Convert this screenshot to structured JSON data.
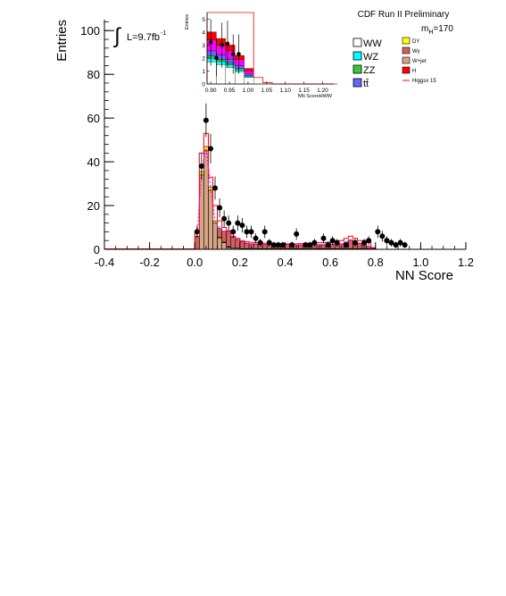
{
  "chart_data": [
    {
      "type": "bar",
      "title": "CDF Run II Preliminary",
      "xlabel": "NN Score",
      "ylabel": "Entries",
      "xlim": [
        -0.4,
        1.2
      ],
      "ylim": [
        0,
        105
      ],
      "x_ticks": [
        "-0.4",
        "-0.2",
        "0.0",
        "0.2",
        "0.4",
        "0.6",
        "0.8",
        "1.0",
        "1.2"
      ],
      "y_ticks": [
        "0",
        "20",
        "40",
        "60",
        "80",
        "100"
      ],
      "bin_width": 0.02,
      "bin_start": 0.0,
      "annotations": {
        "luminosity_prefix": "L=9.7fb",
        "luminosity_exp": "-1",
        "mass_prefix": "m",
        "mass_sub": "H",
        "mass_value": "=170",
        "integral_symbol": "∫"
      },
      "series": [
        {
          "name": "W+jet",
          "color": "#d6a584",
          "values": [
            0,
            34,
            45,
            27,
            12,
            5,
            3,
            1,
            0.5,
            0.5,
            0.3,
            0.3,
            0.3,
            0.3,
            0.3,
            0.3,
            0.3,
            0.3,
            0.3,
            0.3,
            0.3,
            0.3,
            0.3,
            0.3,
            0.3,
            0.3,
            0.3,
            0.3,
            0.3,
            0.3,
            0.3,
            0.3,
            0.3,
            0.3,
            0.3,
            0.3,
            0.3,
            0.3,
            0.3,
            0.3
          ]
        },
        {
          "name": "DY",
          "color": "#ffff00",
          "values": [
            0,
            1.5,
            2,
            1.5,
            1,
            0.5,
            0.3,
            0.2,
            0,
            0,
            0,
            0,
            0,
            0,
            0,
            0,
            0,
            0,
            0,
            0,
            0,
            0,
            0,
            0,
            0,
            0,
            0,
            0,
            0,
            0,
            0,
            0,
            0,
            0,
            0,
            0,
            0,
            0,
            0,
            0
          ]
        },
        {
          "name": "Wγ",
          "color": "#d26060",
          "values": [
            6,
            0,
            0,
            0,
            0,
            4,
            5,
            7,
            5,
            4,
            3.2,
            2.5,
            2.2,
            2.1,
            2,
            2,
            1.9,
            1.9,
            1.8,
            1.8,
            1.8,
            1.8,
            1.7,
            1.7,
            1.7,
            1.8,
            1.8,
            1.8,
            1.8,
            1.8,
            2,
            2,
            2.2,
            3,
            4,
            3,
            2.5,
            2,
            1,
            0.5
          ]
        },
        {
          "name": "Higgsx 15",
          "color": "#ff0000",
          "values": [
            8,
            44,
            53,
            33,
            20,
            13,
            10,
            8.5,
            6,
            5,
            4,
            3.5,
            3.2,
            3,
            3,
            2.8,
            2.7,
            2.7,
            2.6,
            2.6,
            2.5,
            2.5,
            2.5,
            2.6,
            2.7,
            2.8,
            3,
            3,
            3,
            3.2,
            3.5,
            3.8,
            4,
            5,
            6,
            5,
            4,
            4,
            3,
            0
          ]
        }
      ],
      "data_points": {
        "name": "Data",
        "x": [
          0.0,
          0.02,
          0.04,
          0.06,
          0.08,
          0.1,
          0.12,
          0.14,
          0.16,
          0.18,
          0.2,
          0.22,
          0.24,
          0.26,
          0.28,
          0.3,
          0.32,
          0.34,
          0.36,
          0.38,
          0.42,
          0.44,
          0.48,
          0.5,
          0.52,
          0.56,
          0.58,
          0.6,
          0.62,
          0.66,
          0.7,
          0.74,
          0.76,
          0.8,
          0.82,
          0.84,
          0.86,
          0.88,
          0.9,
          0.92
        ],
        "y": [
          8,
          38,
          59,
          46,
          28,
          19,
          14,
          12,
          8,
          12,
          11,
          8,
          8,
          5,
          3,
          8,
          3,
          2,
          2,
          2,
          2,
          7,
          2,
          2,
          3,
          5,
          2,
          4,
          3,
          2,
          3,
          3,
          4,
          8,
          6,
          4,
          3,
          2,
          3,
          2
        ]
      },
      "legend_entries": [
        "WW",
        "WZ",
        "ZZ",
        "tt̄",
        "DY",
        "Wγ",
        "W+jet",
        "H",
        "Higgsx 15"
      ],
      "legend_colors": [
        "#ffffff",
        "#00ffff",
        "#33cc33",
        "#6666ff",
        "#ffff00",
        "#d26060",
        "#d6a584",
        "#ff0000",
        "#ff0000"
      ]
    },
    {
      "type": "bar",
      "title": "",
      "xlabel": "NN ScoreHWW",
      "ylabel": "Entries",
      "xlim": [
        0.89,
        1.23
      ],
      "ylim": [
        0,
        5.5
      ],
      "x_ticks": [
        "0.90",
        "0.95",
        "1.00",
        "1.05",
        "1.10",
        "1.15",
        "1.20"
      ],
      "y_ticks": [
        "0",
        "1",
        "2",
        "3",
        "4",
        "5"
      ],
      "bin_width": 0.025,
      "bin_start": 0.89,
      "series": [
        {
          "name": "H",
          "color": "#ff0000",
          "values": [
            4,
            3.5,
            3,
            2.2,
            1.2,
            0,
            0,
            0,
            0,
            0,
            0,
            0,
            0,
            0
          ]
        },
        {
          "name": "Higgsx 15",
          "color": "#ff0000",
          "values": [
            5.5,
            5.5,
            5.5,
            5.5,
            5.5,
            0.5,
            0.1,
            0,
            0,
            0,
            0,
            0,
            0,
            0
          ]
        }
      ],
      "data_points": {
        "name": "Data",
        "x": [
          0.9,
          0.915,
          0.93,
          0.945,
          0.96,
          0.975
        ],
        "y": [
          3.2,
          2,
          3,
          3.1,
          2.3,
          2.3
        ]
      }
    }
  ]
}
